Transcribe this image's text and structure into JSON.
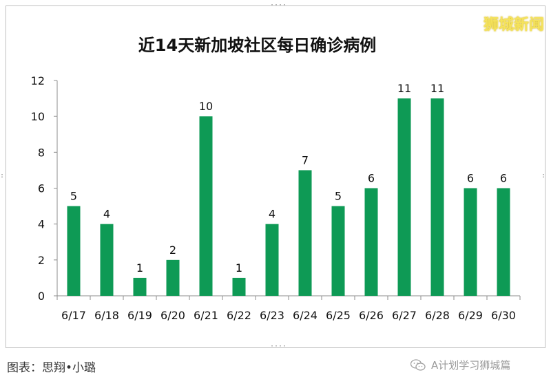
{
  "watermark": "狮城新闻",
  "footer": {
    "credit": "图表：思翔•小璐",
    "account": "A计划学习狮城篇",
    "wechat_icon": "wechat-icon"
  },
  "chart_data": {
    "type": "bar",
    "title": "近14天新加坡社区每日确诊病例",
    "xlabel": "",
    "ylabel": "",
    "categories": [
      "6/17",
      "6/18",
      "6/19",
      "6/20",
      "6/21",
      "6/22",
      "6/23",
      "6/24",
      "6/25",
      "6/26",
      "6/27",
      "6/28",
      "6/29",
      "6/30"
    ],
    "values": [
      5,
      4,
      1,
      2,
      10,
      1,
      4,
      7,
      5,
      6,
      11,
      11,
      6,
      6
    ],
    "ylim": [
      0,
      12
    ],
    "yticks": [
      0,
      2,
      4,
      6,
      8,
      10,
      12
    ],
    "bar_color": "#0e9a55",
    "grid": false,
    "legend": "none"
  }
}
